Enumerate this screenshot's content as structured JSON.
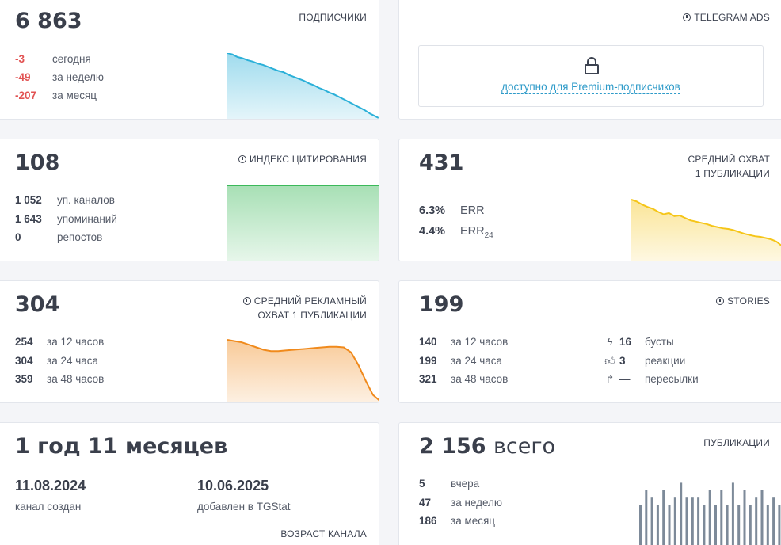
{
  "subscribers": {
    "value": "6 863",
    "header": "ПОДПИСЧИКИ",
    "rows": [
      {
        "value": "-3",
        "label": "сегодня"
      },
      {
        "value": "-49",
        "label": "за неделю"
      },
      {
        "value": "-207",
        "label": "за месяц"
      }
    ],
    "color": "#2bb0d8"
  },
  "telegram_ads": {
    "header": "TELEGRAM ADS",
    "premium_text": "доступно для Premium-подписчиков",
    "icon": "lock-icon"
  },
  "citation": {
    "value": "108",
    "header": "ИНДЕКС ЦИТИРОВАНИЯ",
    "rows": [
      {
        "value": "1 052",
        "label": "уп. каналов"
      },
      {
        "value": "1 643",
        "label": "упоминаний"
      },
      {
        "value": "0",
        "label": "репостов"
      }
    ],
    "color": "#3cb95a"
  },
  "avg_reach": {
    "value": "431",
    "header_line1": "СРЕДНИЙ ОХВАТ",
    "header_line2": "1 ПУБЛИКАЦИИ",
    "rows": [
      {
        "value": "6.3%",
        "label": "ERR",
        "sub": ""
      },
      {
        "value": "4.4%",
        "label": "ERR",
        "sub": "24"
      }
    ],
    "color": "#f5c518"
  },
  "ad_reach": {
    "value": "304",
    "header_line1": "СРЕДНИЙ РЕКЛАМНЫЙ",
    "header_line2": "ОХВАТ 1 ПУБЛИКАЦИИ",
    "rows": [
      {
        "value": "254",
        "label": "за 12 часов"
      },
      {
        "value": "304",
        "label": "за 24 часа"
      },
      {
        "value": "359",
        "label": "за 48 часов"
      }
    ],
    "color": "#f08a1c"
  },
  "stories": {
    "value": "199",
    "header": "STORIES",
    "rows": [
      {
        "value": "140",
        "label": "за 12 часов"
      },
      {
        "value": "199",
        "label": "за 24 часа"
      },
      {
        "value": "321",
        "label": "за 48 часов"
      }
    ],
    "extra": [
      {
        "icon": "lightning-icon",
        "value": "16",
        "label": "бусты"
      },
      {
        "icon": "thumbs-up-icon",
        "value": "3",
        "label": "реакции"
      },
      {
        "icon": "forward-arrow-icon",
        "value": "—",
        "label": "пересылки"
      }
    ]
  },
  "age": {
    "value": "1 год 11 месяцев",
    "created_date": "11.08.2024",
    "created_label": "канал создан",
    "added_date": "10.06.2025",
    "added_label": "добавлен в TGStat",
    "footer": "ВОЗРАСТ КАНАЛА"
  },
  "publications": {
    "value_num": "2 156",
    "value_word": "всего",
    "header": "ПУБЛИКАЦИИ",
    "rows": [
      {
        "value": "5",
        "label": "вчера"
      },
      {
        "value": "47",
        "label": "за неделю"
      },
      {
        "value": "186",
        "label": "за месяц"
      }
    ],
    "color": "#7d8a99"
  },
  "chart_data": [
    {
      "type": "area",
      "title": "ПОДПИСЧИКИ",
      "values": [
        100,
        98,
        94,
        92,
        89,
        87,
        84,
        82,
        79,
        76,
        73,
        71,
        67,
        64,
        61,
        58,
        54,
        51,
        47,
        44,
        40,
        37,
        33,
        29,
        25,
        21,
        17,
        13,
        8,
        4,
        0
      ]
    },
    {
      "type": "area",
      "title": "ИНДЕКС ЦИТИРОВАНИЯ",
      "values": [
        100,
        100,
        100,
        100,
        100,
        100,
        100,
        100,
        100,
        100
      ]
    },
    {
      "type": "area",
      "title": "СРЕДНИЙ ОХВАТ 1 ПУБЛИКАЦИИ",
      "values": [
        100,
        97,
        92,
        88,
        85,
        80,
        76,
        78,
        73,
        74,
        70,
        66,
        64,
        62,
        60,
        57,
        55,
        53,
        52,
        50,
        47,
        44,
        42,
        40,
        39,
        37,
        35,
        31,
        24,
        15
      ]
    },
    {
      "type": "area",
      "title": "СРЕДНИЙ РЕКЛАМНЫЙ ОХВАТ 1 ПУБЛИКАЦИИ",
      "values": [
        100,
        98,
        96,
        92,
        88,
        84,
        82,
        82,
        83,
        84,
        85,
        86,
        87,
        88,
        89,
        89,
        88,
        80,
        60,
        35,
        12,
        2
      ]
    },
    {
      "type": "bar",
      "title": "ПУБЛИКАЦИИ",
      "values": [
        6,
        8,
        7,
        6,
        8,
        6,
        7,
        9,
        7,
        7,
        7,
        6,
        8,
        6,
        8,
        6,
        9,
        6,
        8,
        6,
        7,
        8,
        6,
        7,
        6,
        9
      ]
    }
  ]
}
